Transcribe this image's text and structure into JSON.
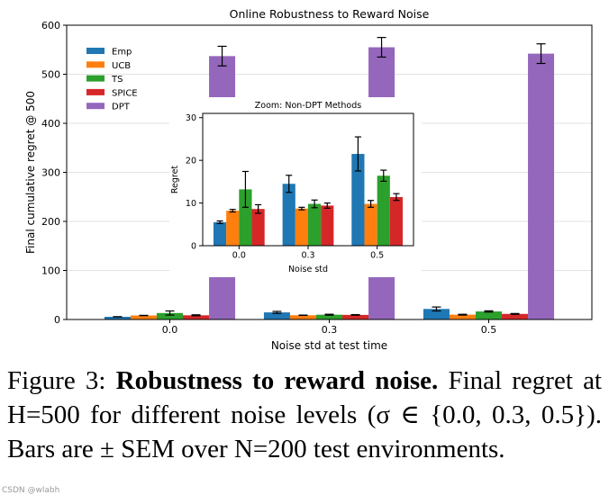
{
  "chart_data": [
    {
      "type": "bar",
      "title": "Online Robustness to Reward Noise",
      "xlabel": "Noise std at test time",
      "ylabel": "Final cumulative regret @ 500",
      "categories": [
        "0.0",
        "0.3",
        "0.5"
      ],
      "ylim": [
        0,
        600
      ],
      "yticks": [
        "0",
        "100",
        "200",
        "300",
        "400",
        "500",
        "600"
      ],
      "legend_position": "upper-left",
      "series": [
        {
          "name": "Emp",
          "color": "#1f77b4",
          "values": [
            5.5,
            14.5,
            21.5
          ],
          "errors": [
            0.3,
            2.0,
            4.0
          ]
        },
        {
          "name": "UCB",
          "color": "#ff7f0e",
          "values": [
            8.2,
            8.7,
            9.8
          ],
          "errors": [
            0.3,
            0.3,
            0.8
          ]
        },
        {
          "name": "TS",
          "color": "#2ca02c",
          "values": [
            13.2,
            9.8,
            16.4
          ],
          "errors": [
            4.2,
            0.9,
            1.3
          ]
        },
        {
          "name": "SPICE",
          "color": "#d62728",
          "values": [
            8.6,
            9.4,
            11.4
          ],
          "errors": [
            1.0,
            0.6,
            0.8
          ]
        },
        {
          "name": "DPT",
          "color": "#9467bd",
          "values": [
            537,
            555,
            542
          ],
          "errors": [
            20,
            20,
            20
          ]
        }
      ]
    },
    {
      "type": "bar",
      "title": "Zoom: Non-DPT Methods",
      "xlabel": "Noise std",
      "ylabel": "Regret",
      "categories": [
        "0.0",
        "0.3",
        "0.5"
      ],
      "ylim": [
        0,
        31
      ],
      "yticks": [
        "0",
        "10",
        "20",
        "30"
      ],
      "series": [
        {
          "name": "Emp",
          "color": "#1f77b4",
          "values": [
            5.5,
            14.5,
            21.5
          ],
          "errors": [
            0.3,
            2.0,
            4.0
          ]
        },
        {
          "name": "UCB",
          "color": "#ff7f0e",
          "values": [
            8.2,
            8.7,
            9.8
          ],
          "errors": [
            0.3,
            0.3,
            0.8
          ]
        },
        {
          "name": "TS",
          "color": "#2ca02c",
          "values": [
            13.2,
            9.8,
            16.4
          ],
          "errors": [
            4.2,
            0.9,
            1.3
          ]
        },
        {
          "name": "SPICE",
          "color": "#d62728",
          "values": [
            8.6,
            9.4,
            11.4
          ],
          "errors": [
            1.0,
            0.6,
            0.8
          ]
        }
      ]
    }
  ],
  "caption": {
    "label": "Figure 3:",
    "title": "Robustness to reward noise.",
    "text": "Final regret at H=500 for different noise levels (σ ∈ {0.0, 0.3, 0.5}). Bars are ± SEM over N=200 test environments."
  },
  "watermark": "CSDN @wlabh"
}
